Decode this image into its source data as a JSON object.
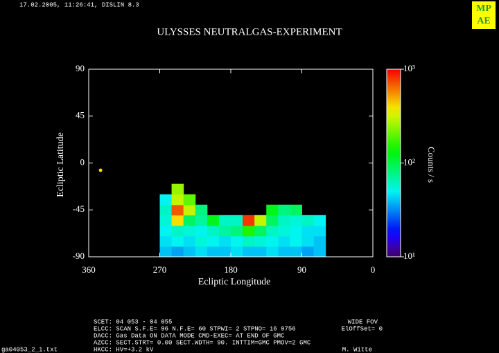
{
  "header": {
    "stamp": "17.02.2005, 11:26:41, DISLIN 8.3",
    "logo": [
      "MP",
      "AE"
    ]
  },
  "chart_data": {
    "type": "heatmap",
    "title": "ULYSSES NEUTRALGAS-EXPERIMENT",
    "x_label": "Ecliptic Longitude",
    "y_label": "Ecliptic Latitude",
    "xlim": [
      360,
      0
    ],
    "xticks": [
      360,
      270,
      180,
      90,
      0
    ],
    "ylim": [
      -90,
      90
    ],
    "yticks": [
      90,
      45,
      0,
      -45,
      -90
    ],
    "x": [
      262.5,
      247.5,
      232.5,
      217.5,
      202.5,
      187.5,
      172.5,
      157.5,
      142.5,
      127.5,
      112.5,
      97.5,
      82.5,
      67.5
    ],
    "y": [
      -85,
      -75,
      -65,
      -55,
      -45,
      -35,
      -25
    ],
    "z": [
      [
        40,
        35,
        40,
        45,
        40,
        40,
        45,
        40,
        40,
        45,
        40,
        40,
        35,
        40
      ],
      [
        45,
        50,
        45,
        55,
        50,
        45,
        50,
        60,
        55,
        50,
        45,
        50,
        45,
        40
      ],
      [
        50,
        60,
        55,
        50,
        60,
        70,
        80,
        150,
        90,
        60,
        55,
        50,
        45,
        45
      ],
      [
        55,
        400,
        90,
        70,
        120,
        60,
        60,
        800,
        300,
        90,
        60,
        55,
        60,
        50
      ],
      [
        60,
        700,
        300,
        80,
        null,
        null,
        null,
        null,
        null,
        120,
        80,
        90,
        null,
        null
      ],
      [
        50,
        300,
        200,
        null,
        null,
        null,
        null,
        null,
        null,
        null,
        null,
        null,
        null,
        null
      ],
      [
        null,
        250,
        null,
        null,
        null,
        null,
        null,
        null,
        null,
        null,
        null,
        null,
        null,
        null
      ]
    ],
    "points": {
      "x": [
        345
      ],
      "y": [
        -7
      ],
      "values": [
        400
      ]
    },
    "colorbar": {
      "label": "Counts / s",
      "log": true,
      "clim": [
        10,
        1000
      ],
      "ticks": [
        {
          "value": 1000,
          "label": "10³"
        },
        {
          "value": 100,
          "label": "10²"
        },
        {
          "value": 10,
          "label": "10¹"
        }
      ]
    }
  },
  "footer": {
    "lines": [
      "SCET: 04 053 - 04 055",
      "ELCC: SCAN  S.F.E= 96 N.F.E= 60 STPWI=  2  STPNO= 16   9756",
      "DACC: Gas Data ON    DATA MODE CMD-EXEC= AT END OF GMC",
      "AZCC: SECT.STRT=  0.00 SECT.WDTH= 90. INTTIM=GMC PMOV=2 GMC",
      "HKCC: HV=+3.2 kV"
    ],
    "right": [
      "WIDE FOV",
      "ElOffSet= 0",
      "M. Witte"
    ],
    "file": "ga04053_2_1.txt"
  }
}
